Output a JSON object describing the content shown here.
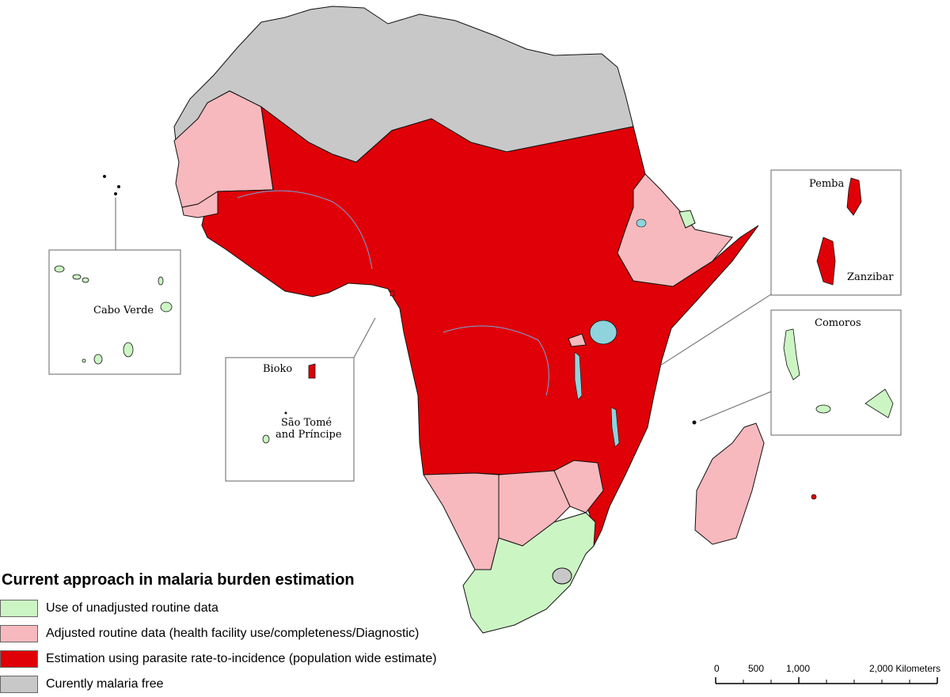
{
  "colors": {
    "unadjusted": "#ccf5c4",
    "adjusted": "#f7b9bd",
    "parasite": "#e00007",
    "free": "#bdbdbd",
    "water": "#8fd3dd",
    "border": "#111111"
  },
  "legend": {
    "title": "Current approach in malaria burden estimation",
    "items": [
      {
        "label": "Use of unadjusted routine data",
        "color": "#ccf5c4"
      },
      {
        "label": "Adjusted routine data (health facility use/completeness/Diagnostic)",
        "color": "#f7b9bd"
      },
      {
        "label": "Estimation using parasite rate-to-incidence (population wide estimate)",
        "color": "#e00007"
      },
      {
        "label": "Curently malaria free",
        "color": "#c8c8c8"
      }
    ]
  },
  "insets": {
    "cabo_verde": "Cabo Verde",
    "bioko": "Bioko",
    "sao_tome_line1": "São Tomé",
    "sao_tome_line2": "and Príncipe",
    "pemba": "Pemba",
    "zanzibar": "Zanzibar",
    "comoros": "Comoros"
  },
  "scale_bar": {
    "ticks": [
      "0",
      "500",
      "1,000",
      "2,000 Kilometers"
    ]
  }
}
